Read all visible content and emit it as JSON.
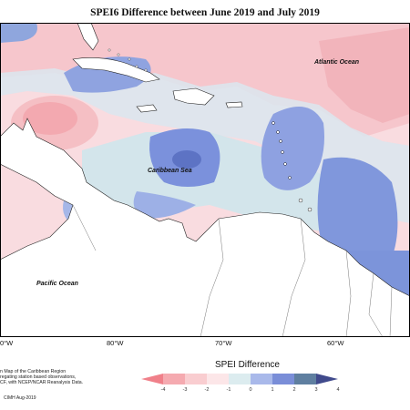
{
  "title": "SPEI6 Difference between June 2019 and July 2019",
  "map_labels": {
    "atlantic": "Atlantic Ocean",
    "caribbean": "Caribbean Sea",
    "pacific": "Pacific Ocean"
  },
  "longitude_ticks": [
    "0°W",
    "80°W",
    "70°W",
    "60°W"
  ],
  "legend": {
    "title": "SPEI Difference",
    "ticks": [
      "-4",
      "-3",
      "-2",
      "-1",
      "0",
      "1",
      "2",
      "3",
      "4"
    ],
    "colors": [
      "#f0808a",
      "#f5aab0",
      "#f9cdd0",
      "#fce6e8",
      "#dcecef",
      "#a9b9ea",
      "#7a8ed8",
      "#5f7fa0",
      "#404a8c"
    ]
  },
  "credits": {
    "line1": "n Map of the Caribbean Region",
    "line2": "regating station based observations,",
    "line3": "CF, with NCEP/NCAR Reanalysis Data.",
    "copyright": "CIMH Aug-2019"
  },
  "colors": {
    "dry_strong": "#f0808a",
    "dry_light": "#f9cdd0",
    "neutral": "#dcecef",
    "wet_light": "#a9b9ea",
    "wet_strong": "#6a82cf"
  }
}
